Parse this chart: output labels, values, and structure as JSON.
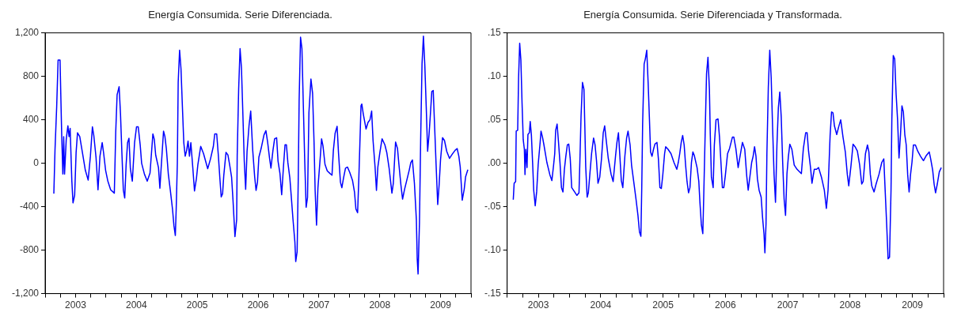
{
  "chart_data": [
    {
      "type": "line",
      "title": "Energía Consumida. Serie Diferenciada.",
      "color": "#0000ff",
      "grid": false,
      "legend": false,
      "x": [
        2003.143,
        2003.162,
        2003.19,
        2003.213,
        2003.245,
        2003.259,
        2003.273,
        2003.291,
        2003.305,
        2003.319,
        2003.347,
        2003.374,
        2003.393,
        2003.411,
        2003.439,
        2003.458,
        2003.485,
        2003.509,
        2003.532,
        2003.569,
        2003.615,
        2003.661,
        2003.707,
        2003.744,
        2003.777,
        2003.8,
        2003.837,
        2003.869,
        2003.901,
        2003.938,
        2003.962,
        2003.994,
        2004.031,
        2004.077,
        2004.137,
        2004.16,
        2004.183,
        2004.216,
        2004.239,
        2004.262,
        2004.285,
        2004.308,
        2004.331,
        2004.355,
        2004.378,
        2004.401,
        2004.433,
        2004.47,
        2004.502,
        2004.53,
        2004.563,
        2004.586,
        2004.632,
        2004.678,
        2004.724,
        2004.771,
        2004.794,
        2004.817,
        2004.863,
        2004.886,
        2004.909,
        2004.946,
        2004.969,
        2004.993,
        2005.025,
        2005.057,
        2005.094,
        2005.117,
        2005.14,
        2005.154,
        2005.173,
        2005.187,
        2005.21,
        2005.233,
        2005.256,
        2005.279,
        2005.302,
        2005.325,
        2005.349,
        2005.372,
        2005.395,
        2005.427,
        2005.455,
        2005.487,
        2005.51,
        2005.557,
        2005.603,
        2005.672,
        2005.718,
        2005.765,
        2005.788,
        2005.82,
        2005.848,
        2005.871,
        2005.894,
        2005.917,
        2005.936,
        2005.973,
        2006.005,
        2006.033,
        2006.065,
        2006.088,
        2006.12,
        2006.148,
        2006.157,
        2006.181,
        2006.204,
        2006.227,
        2006.25,
        2006.273,
        2006.296,
        2006.319,
        2006.352,
        2006.379,
        2006.412,
        2006.444,
        2006.467,
        2006.49,
        2006.513,
        2006.55,
        2006.597,
        2006.629,
        2006.657,
        2006.689,
        2006.712,
        2006.745,
        2006.772,
        2006.805,
        2006.828,
        2006.86,
        2006.888,
        2006.92,
        2006.943,
        2006.966,
        2006.99,
        2007.022,
        2007.045,
        2007.073,
        2007.105,
        2007.119,
        2007.142,
        2007.161,
        2007.175,
        2007.198,
        2007.221,
        2007.244,
        2007.267,
        2007.29,
        2007.313,
        2007.336,
        2007.369,
        2007.396,
        2007.42,
        2007.438,
        2007.461,
        2007.484,
        2007.521,
        2007.544,
        2007.567,
        2007.6,
        2007.637,
        2007.683,
        2007.715,
        2007.738,
        2007.766,
        2007.799,
        2007.822,
        2007.854,
        2007.877,
        2007.905,
        2007.937,
        2007.97,
        2008.007,
        2008.053,
        2008.085,
        2008.108,
        2008.136,
        2008.155,
        2008.173,
        2008.192,
        2008.205,
        2008.229,
        2008.275,
        2008.307,
        2008.339,
        2008.367,
        2008.39,
        2008.423,
        2008.446,
        2008.469,
        2008.501,
        2008.538,
        2008.584,
        2008.617,
        2008.654,
        2008.7,
        2008.723,
        2008.76,
        2008.792,
        2008.815,
        2008.848,
        2008.875,
        2008.908,
        2008.954,
        2008.986,
        2009.01,
        2009.037,
        2009.07,
        2009.102,
        2009.116,
        2009.13,
        2009.153,
        2009.172,
        2009.195,
        2009.218,
        2009.241,
        2009.264,
        2009.287,
        2009.31,
        2009.333,
        2009.356,
        2009.379,
        2009.403,
        2009.426,
        2009.453,
        2009.476,
        2009.499,
        2009.532,
        2009.564,
        2009.601,
        2009.647,
        2009.694,
        2009.74,
        2009.772,
        2009.8,
        2009.823,
        2009.856,
        2009.888,
        2009.911,
        2009.948
      ],
      "values": [
        -280,
        120,
        525,
        950,
        950,
        590,
        245,
        -100,
        245,
        -100,
        220,
        345,
        245,
        320,
        -165,
        -365,
        -295,
        100,
        280,
        245,
        90,
        -65,
        -155,
        65,
        335,
        255,
        50,
        -245,
        65,
        190,
        90,
        -65,
        -165,
        -245,
        -275,
        280,
        630,
        705,
        450,
        90,
        -245,
        -320,
        -15,
        190,
        230,
        -50,
        -165,
        190,
        335,
        335,
        165,
        0,
        -100,
        -165,
        -90,
        270,
        220,
        75,
        -40,
        -230,
        -25,
        295,
        245,
        130,
        -100,
        -245,
        -425,
        -575,
        -665,
        -425,
        0,
        745,
        1040,
        870,
        525,
        190,
        65,
        115,
        205,
        65,
        190,
        -40,
        -255,
        -140,
        -15,
        155,
        90,
        -50,
        40,
        155,
        270,
        270,
        65,
        -130,
        -310,
        -280,
        -115,
        100,
        75,
        -15,
        -130,
        -340,
        -675,
        -520,
        70,
        685,
        1055,
        875,
        455,
        20,
        -240,
        110,
        350,
        480,
        120,
        -125,
        -250,
        -175,
        55,
        135,
        260,
        300,
        195,
        45,
        -45,
        120,
        225,
        235,
        20,
        -95,
        -290,
        -10,
        170,
        170,
        5,
        -135,
        -300,
        -510,
        -725,
        -905,
        -815,
        -125,
        580,
        1160,
        1055,
        530,
        20,
        -405,
        -315,
        465,
        775,
        645,
        195,
        -250,
        -570,
        -225,
        45,
        225,
        160,
        -10,
        -70,
        -95,
        -110,
        120,
        275,
        340,
        95,
        -175,
        -225,
        -135,
        -45,
        -35,
        -85,
        -160,
        -265,
        -420,
        -455,
        -160,
        170,
        530,
        545,
        455,
        315,
        375,
        400,
        480,
        210,
        -35,
        -250,
        -35,
        95,
        225,
        170,
        95,
        -45,
        -275,
        -185,
        195,
        135,
        -10,
        -200,
        -330,
        -240,
        -135,
        -60,
        5,
        30,
        -185,
        -520,
        -880,
        -1020,
        -545,
        195,
        915,
        1170,
        900,
        520,
        110,
        260,
        455,
        660,
        670,
        325,
        -10,
        -380,
        -200,
        30,
        235,
        210,
        110,
        45,
        85,
        120,
        135,
        65,
        -35,
        -340,
        -240,
        -125,
        -60
      ],
      "xlim": [
        2003,
        2010
      ],
      "xticks": [
        {
          "value": 2003,
          "label": null
        },
        {
          "value": 2003.25,
          "label": null
        },
        {
          "value": 2003.5,
          "label": "2003"
        },
        {
          "value": 2003.75,
          "label": null
        },
        {
          "value": 2004,
          "label": null
        },
        {
          "value": 2004.25,
          "label": null
        },
        {
          "value": 2004.5,
          "label": "2004"
        },
        {
          "value": 2004.75,
          "label": null
        },
        {
          "value": 2005,
          "label": null
        },
        {
          "value": 2005.25,
          "label": null
        },
        {
          "value": 2005.5,
          "label": "2005"
        },
        {
          "value": 2005.75,
          "label": null
        },
        {
          "value": 2006,
          "label": null
        },
        {
          "value": 2006.25,
          "label": null
        },
        {
          "value": 2006.5,
          "label": "2006"
        },
        {
          "value": 2006.75,
          "label": null
        },
        {
          "value": 2007,
          "label": null
        },
        {
          "value": 2007.25,
          "label": null
        },
        {
          "value": 2007.5,
          "label": "2007"
        },
        {
          "value": 2007.75,
          "label": null
        },
        {
          "value": 2008,
          "label": null
        },
        {
          "value": 2008.25,
          "label": null
        },
        {
          "value": 2008.5,
          "label": "2008"
        },
        {
          "value": 2008.75,
          "label": null
        },
        {
          "value": 2009,
          "label": null
        },
        {
          "value": 2009.25,
          "label": null
        },
        {
          "value": 2009.5,
          "label": "2009"
        },
        {
          "value": 2009.75,
          "label": null
        },
        {
          "value": 2010,
          "label": null
        }
      ],
      "ylim": [
        -1200,
        1200
      ],
      "yticks": [
        {
          "value": -1200,
          "label": "-1,200"
        },
        -800,
        -400,
        0,
        400,
        800,
        {
          "value": 1200,
          "label": "1,200"
        }
      ]
    },
    {
      "type": "line",
      "title": "Energía Consumida. Serie Diferenciada y Transformada.",
      "color": "#0000ff",
      "grid": false,
      "legend": false,
      "x": [
        2003.098,
        2003.112,
        2003.136,
        2003.145,
        2003.169,
        2003.183,
        2003.201,
        2003.22,
        2003.239,
        2003.258,
        2003.276,
        2003.286,
        2003.3,
        2003.319,
        2003.333,
        2003.356,
        2003.37,
        2003.389,
        2003.408,
        2003.426,
        2003.45,
        2003.473,
        2003.497,
        2003.529,
        2003.543,
        2003.567,
        2003.59,
        2003.637,
        2003.684,
        2003.717,
        2003.745,
        2003.763,
        2003.778,
        2003.801,
        2003.824,
        2003.848,
        2003.871,
        2003.895,
        2003.918,
        2003.941,
        2003.965,
        2003.988,
        2004.012,
        2004.035,
        2004.082,
        2004.119,
        2004.152,
        2004.166,
        2004.185,
        2004.208,
        2004.232,
        2004.246,
        2004.26,
        2004.283,
        2004.302,
        2004.326,
        2004.354,
        2004.386,
        2004.41,
        2004.433,
        2004.457,
        2004.485,
        2004.513,
        2004.541,
        2004.564,
        2004.588,
        2004.621,
        2004.668,
        2004.7,
        2004.738,
        2004.761,
        2004.785,
        2004.808,
        2004.831,
        2004.855,
        2004.888,
        2004.916,
        2004.939,
        2004.972,
        2004.995,
        2005.028,
        2005.066,
        2005.098,
        2005.122,
        2005.145,
        2005.159,
        2005.173,
        2005.197,
        2005.216,
        2005.239,
        2005.262,
        2005.281,
        2005.3,
        2005.323,
        2005.347,
        2005.37,
        2005.403,
        2005.426,
        2005.45,
        2005.473,
        2005.497,
        2005.525,
        2005.543,
        2005.581,
        2005.628,
        2005.675,
        2005.721,
        2005.745,
        2005.768,
        2005.792,
        2005.815,
        2005.839,
        2005.862,
        2005.885,
        2005.909,
        2005.932,
        2005.956,
        2005.979,
        2006.002,
        2006.014,
        2006.046,
        2006.074,
        2006.092,
        2006.115,
        2006.138,
        2006.152,
        2006.175,
        2006.198,
        2006.221,
        2006.244,
        2006.258,
        2006.276,
        2006.304,
        2006.323,
        2006.35,
        2006.382,
        2006.406,
        2006.429,
        2006.452,
        2006.475,
        2006.498,
        2006.535,
        2006.567,
        2006.613,
        2006.636,
        2006.668,
        2006.705,
        2006.728,
        2006.774,
        2006.811,
        2006.843,
        2006.866,
        2006.889,
        2006.922,
        2006.945,
        2006.968,
        2006.991,
        2007.014,
        2007.041,
        2007.074,
        2007.097,
        2007.12,
        2007.134,
        2007.152,
        2007.166,
        2007.189,
        2007.212,
        2007.235,
        2007.258,
        2007.281,
        2007.304,
        2007.327,
        2007.35,
        2007.373,
        2007.396,
        2007.419,
        2007.442,
        2007.465,
        2007.488,
        2007.511,
        2007.534,
        2007.567,
        2007.604,
        2007.65,
        2007.719,
        2007.751,
        2007.788,
        2007.811,
        2007.834,
        2007.866,
        2007.889,
        2007.926,
        2007.963,
        2007.995,
        2008.041,
        2008.087,
        2008.12,
        2008.147,
        2008.18,
        2008.203,
        2008.226,
        2008.249,
        2008.286,
        2008.318,
        2008.35,
        2008.387,
        2008.424,
        2008.456,
        2008.479,
        2008.516,
        2008.548,
        2008.58,
        2008.617,
        2008.654,
        2008.687,
        2008.71,
        2008.747,
        2008.779,
        2008.802,
        2008.825,
        2008.848,
        2008.885,
        2008.917,
        2008.963,
        2009.009,
        2009.041,
        2009.064,
        2009.087,
        2009.11,
        2009.133,
        2009.157,
        2009.17,
        2009.193,
        2009.216,
        2009.239,
        2009.262,
        2009.285,
        2009.309,
        2009.332,
        2009.355,
        2009.378,
        2009.401,
        2009.424,
        2009.447,
        2009.47,
        2009.493,
        2009.516,
        2009.548,
        2009.585,
        2009.631,
        2009.677,
        2009.724,
        2009.77,
        2009.793,
        2009.825,
        2009.848,
        2009.871,
        2009.899,
        2009.931,
        2009.963
      ],
      "values": [
        -0.042,
        -0.023,
        -0.021,
        0.037,
        0.038,
        0.098,
        0.138,
        0.119,
        0.069,
        0.027,
        0.016,
        -0.013,
        0.016,
        -0.005,
        0.033,
        0.035,
        0.048,
        0.032,
        0.001,
        -0.031,
        -0.049,
        -0.033,
        -0.002,
        0.024,
        0.037,
        0.03,
        0.021,
        0.001,
        -0.013,
        -0.02,
        -0.002,
        0.011,
        0.038,
        0.045,
        0.024,
        0,
        -0.028,
        -0.033,
        -0.007,
        0.008,
        0.021,
        0.022,
        0.005,
        -0.028,
        -0.033,
        -0.037,
        -0.034,
        0.001,
        0.054,
        0.093,
        0.085,
        0.042,
        -0.004,
        -0.039,
        -0.034,
        -0.013,
        0.011,
        0.029,
        0.021,
        0.003,
        -0.023,
        -0.016,
        0.005,
        0.035,
        0.043,
        0.027,
        0.006,
        -0.013,
        -0.021,
        0.008,
        0.024,
        0.035,
        0.008,
        -0.02,
        -0.028,
        0.008,
        0.029,
        0.037,
        0.021,
        -0.002,
        -0.02,
        -0.041,
        -0.06,
        -0.079,
        -0.084,
        -0.028,
        0.046,
        0.114,
        0.12,
        0.13,
        0.091,
        0.053,
        0.013,
        0.008,
        0.016,
        0.022,
        0.024,
        0.005,
        -0.028,
        -0.029,
        -0.013,
        0.011,
        0.019,
        0.016,
        0.011,
        0.001,
        -0.007,
        0.001,
        0.011,
        0.024,
        0.032,
        0.021,
        -0.002,
        -0.021,
        -0.034,
        -0.028,
        0.001,
        0.013,
        0.009,
        0.005,
        -0.005,
        -0.021,
        -0.045,
        -0.071,
        -0.081,
        -0.041,
        0.032,
        0.103,
        0.122,
        0.085,
        0.033,
        -0.016,
        -0.028,
        0.021,
        0.05,
        0.051,
        0.03,
        0.001,
        -0.028,
        -0.028,
        -0.015,
        0.011,
        0.017,
        0.03,
        0.03,
        0.017,
        -0.005,
        0.005,
        0.024,
        0.016,
        -0.015,
        -0.031,
        -0.018,
        0.001,
        0.008,
        0.019,
        0.008,
        -0.018,
        -0.031,
        -0.039,
        -0.063,
        -0.082,
        -0.103,
        -0.07,
        0.011,
        0.088,
        0.13,
        0.098,
        0.04,
        -0.013,
        -0.045,
        0.021,
        0.064,
        0.082,
        0.053,
        0.001,
        -0.041,
        -0.06,
        -0.012,
        0.008,
        0.022,
        0.016,
        -0.002,
        -0.007,
        -0.012,
        0.017,
        0.035,
        0.035,
        0.014,
        -0.005,
        -0.023,
        -0.007,
        -0.007,
        -0.005,
        -0.016,
        -0.031,
        -0.052,
        -0.031,
        0.032,
        0.059,
        0.058,
        0.043,
        0.033,
        0.042,
        0.05,
        0.03,
        0.013,
        -0.013,
        -0.026,
        -0.002,
        0.022,
        0.019,
        0.014,
        -0.002,
        -0.024,
        -0.021,
        0.011,
        0.021,
        0.013,
        -0.013,
        -0.026,
        -0.033,
        -0.024,
        -0.013,
        0.001,
        0.005,
        -0.033,
        -0.07,
        -0.11,
        -0.108,
        -0.031,
        0.05,
        0.124,
        0.12,
        0.079,
        0.05,
        0.006,
        0.033,
        0.066,
        0.059,
        0.033,
        0.021,
        -0.013,
        -0.033,
        -0.013,
        0.001,
        0.021,
        0.021,
        0.014,
        0.008,
        0.003,
        0.009,
        0.013,
        0.005,
        -0.008,
        -0.024,
        -0.034,
        -0.024,
        -0.01,
        -0.005
      ],
      "xlim": [
        2003,
        2010
      ],
      "xticks": [
        {
          "value": 2003,
          "label": null
        },
        {
          "value": 2003.25,
          "label": null
        },
        {
          "value": 2003.5,
          "label": "2003"
        },
        {
          "value": 2003.75,
          "label": null
        },
        {
          "value": 2004,
          "label": null
        },
        {
          "value": 2004.25,
          "label": null
        },
        {
          "value": 2004.5,
          "label": "2004"
        },
        {
          "value": 2004.75,
          "label": null
        },
        {
          "value": 2005,
          "label": null
        },
        {
          "value": 2005.25,
          "label": null
        },
        {
          "value": 2005.5,
          "label": "2005"
        },
        {
          "value": 2005.75,
          "label": null
        },
        {
          "value": 2006,
          "label": null
        },
        {
          "value": 2006.25,
          "label": null
        },
        {
          "value": 2006.5,
          "label": "2006"
        },
        {
          "value": 2006.75,
          "label": null
        },
        {
          "value": 2007,
          "label": null
        },
        {
          "value": 2007.25,
          "label": null
        },
        {
          "value": 2007.5,
          "label": "2007"
        },
        {
          "value": 2007.75,
          "label": null
        },
        {
          "value": 2008,
          "label": null
        },
        {
          "value": 2008.25,
          "label": null
        },
        {
          "value": 2008.5,
          "label": "2008"
        },
        {
          "value": 2008.75,
          "label": null
        },
        {
          "value": 2009,
          "label": null
        },
        {
          "value": 2009.25,
          "label": null
        },
        {
          "value": 2009.5,
          "label": "2009"
        },
        {
          "value": 2009.75,
          "label": null
        },
        {
          "value": 2010,
          "label": null
        }
      ],
      "ylim": [
        -0.15,
        0.15
      ],
      "yticks": [
        {
          "value": -0.15,
          "label": "-.15"
        },
        {
          "value": -0.1,
          "label": "-.10"
        },
        {
          "value": -0.05,
          "label": "-.05"
        },
        {
          "value": 0,
          "label": ".00"
        },
        {
          "value": 0.05,
          "label": ".05"
        },
        {
          "value": 0.1,
          "label": ".10"
        },
        {
          "value": 0.15,
          "label": ".15"
        }
      ]
    }
  ]
}
